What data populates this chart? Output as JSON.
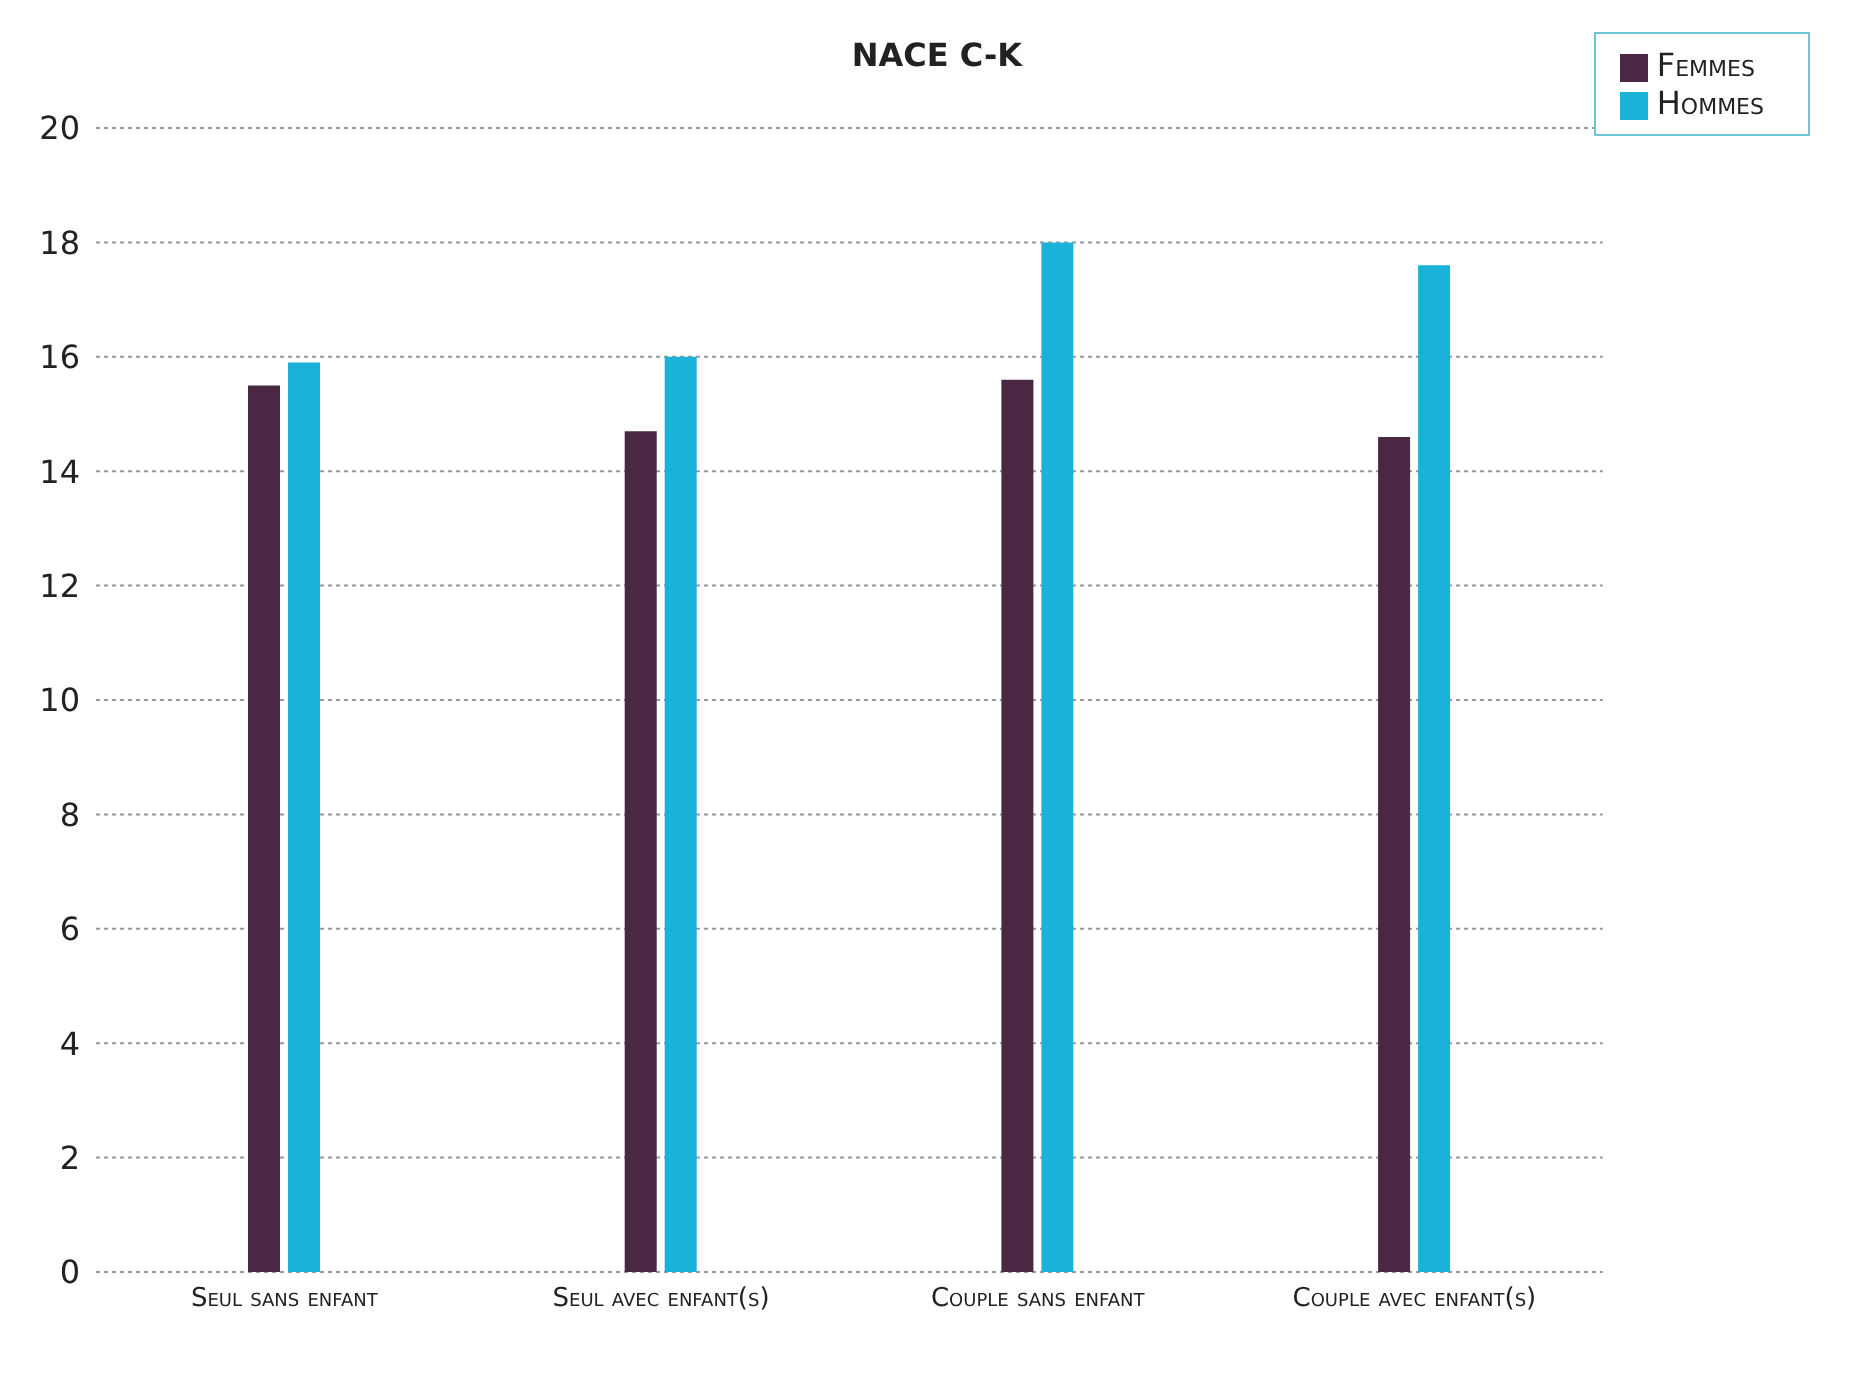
{
  "chart_data": {
    "type": "bar",
    "title": "NACE C-K",
    "categories": [
      "Seul sans enfant",
      "Seul avec enfant(s)",
      "Couple sans enfant",
      "Couple avec enfant(s)"
    ],
    "series": [
      {
        "name": "Femmes",
        "color": "#4a2843",
        "values": [
          15.5,
          14.7,
          15.6,
          14.6
        ]
      },
      {
        "name": "Hommes",
        "color": "#1ab2d9",
        "values": [
          15.9,
          16.0,
          18.0,
          17.6
        ]
      }
    ],
    "ylim": [
      0,
      20
    ],
    "yticks": [
      0,
      2,
      4,
      6,
      8,
      10,
      12,
      14,
      16,
      18,
      20
    ],
    "grid": "y",
    "legend": "top right"
  }
}
